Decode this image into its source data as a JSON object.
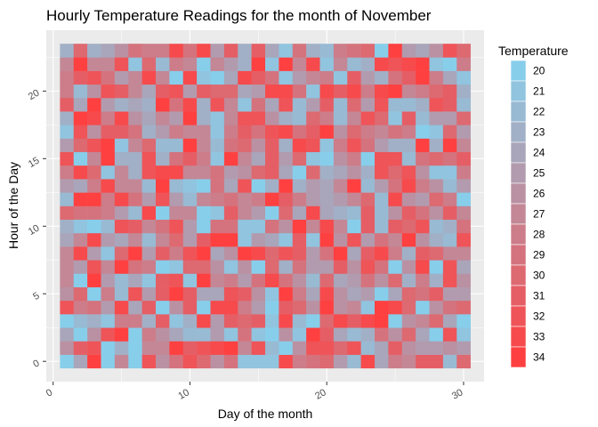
{
  "chart_data": {
    "type": "heatmap",
    "title": "Hourly Temperature Readings for the month of November",
    "xlabel": "Day of the month",
    "ylabel": "Hour of the Day",
    "x_range": [
      1,
      30
    ],
    "y_range": [
      0,
      23
    ],
    "xlim": [
      -0.5,
      31.5
    ],
    "ylim": [
      -1.5,
      24.5
    ],
    "x_ticks": [
      0,
      10,
      20,
      30
    ],
    "y_ticks": [
      0,
      5,
      10,
      15,
      20
    ],
    "legend": {
      "title": "Temperature",
      "position": "right",
      "values": [
        20,
        21,
        22,
        23,
        24,
        25,
        26,
        27,
        28,
        29,
        30,
        31,
        32,
        33,
        34
      ]
    },
    "color_scale": {
      "low_value": 20,
      "low_color": "#87ceeb",
      "high_value": 34,
      "high_color": "#ff4040"
    },
    "background": "#ebebeb",
    "grid": true,
    "note_values_estimated": true
  }
}
